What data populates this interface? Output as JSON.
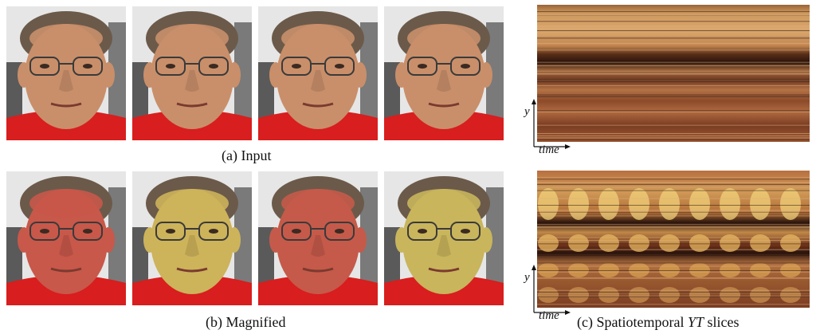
{
  "figure": {
    "captions": {
      "input": "(a) Input",
      "magnified": "(b) Magnified",
      "slices_prefix": "(c) Spatiotemporal ",
      "slices_italic": "YT",
      "slices_suffix": " slices"
    },
    "axis": {
      "y": "y",
      "time": "time"
    },
    "input_frames": [
      {
        "skin": "#c98f6a"
      },
      {
        "skin": "#c98f6a"
      },
      {
        "skin": "#c98f6a"
      },
      {
        "skin": "#c98f6a"
      }
    ],
    "magnified_frames": [
      {
        "skin": "#c8584a"
      },
      {
        "skin": "#cdb35a"
      },
      {
        "skin": "#c55a4a"
      },
      {
        "skin": "#c9b55c"
      }
    ],
    "colors": {
      "shirt": "#d81e1e",
      "hair": "#6b5a4a",
      "background": "#e6e6e6",
      "slice_warm": "#c88c4a",
      "slice_dark": "#2a140c",
      "slice_light": "#f2d27a"
    }
  }
}
